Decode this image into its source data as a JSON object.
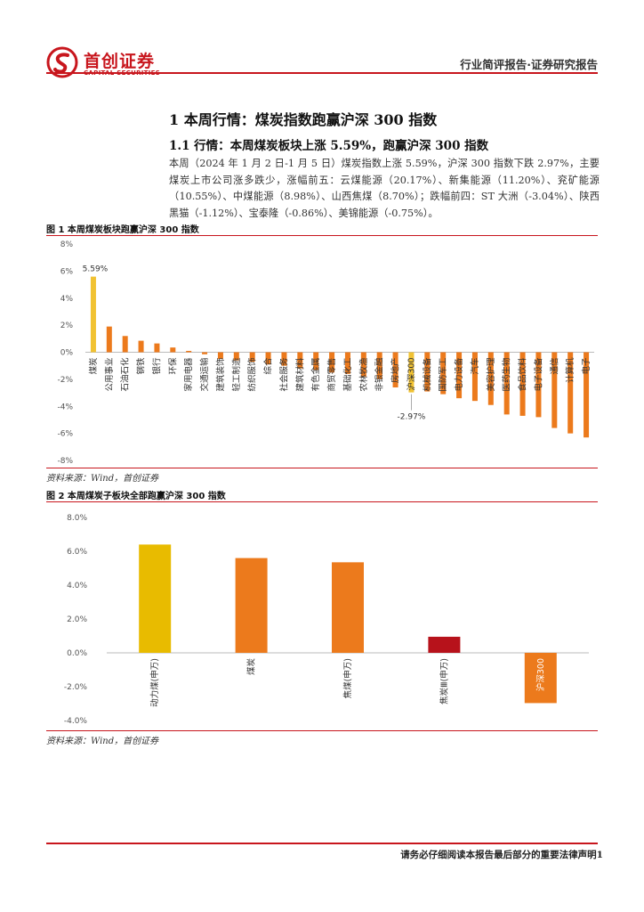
{
  "header": {
    "logo_cn": "首创证券",
    "logo_en": "CAPITAL SECURITIES",
    "report_type": "行业简评报告·证券研究报告"
  },
  "section": {
    "h1": "1 本周行情：煤炭指数跑赢沪深 300 指数",
    "h2": "1.1 行情：本周煤炭板块上涨 5.59%，跑赢沪深 300 指数",
    "paragraph": "本周（2024 年 1 月 2 日-1 月 5 日）煤炭指数上涨 5.59%，沪深 300 指数下跌 2.97%，主要煤炭上市公司涨多跌少，涨幅前五：云煤能源（20.17%）、新集能源（11.20%）、兖矿能源（10.55%）、中煤能源（8.98%）、山西焦煤（8.70%）；跌幅前四：ST 大洲（-3.04%）、陕西黑猫（-1.12%）、宝泰隆（-0.86%）、美锦能源（-0.75%）。"
  },
  "figure1": {
    "title": "图 1 本周煤炭板块跑赢沪深 300 指数",
    "source": "资料来源：Wind，首创证券"
  },
  "figure2": {
    "title": "图 2 本周煤炭子板块全部跑赢沪深 300 指数",
    "source": "资料来源：Wind，首创证券"
  },
  "footer": {
    "text": "请务必仔细阅读本报告最后部分的重要法律声明1"
  },
  "colors": {
    "brand_red": "#c8161d",
    "highlight_yellow": "#f1c232",
    "bar_orange": "#ec7a1c",
    "dark_red": "#b7121b",
    "gold": "#e8bb00"
  },
  "chart_data": [
    {
      "type": "bar",
      "categories": [
        "煤炭",
        "公用事业",
        "石油石化",
        "钢铁",
        "银行",
        "环保",
        "家用电器",
        "交通运输",
        "建筑装饰",
        "轻工制造",
        "纺织服饰",
        "综合",
        "社会服务",
        "建筑材料",
        "有色金属",
        "商贸零售",
        "基础化工",
        "农林牧渔",
        "非银金融",
        "房地产",
        "沪深300",
        "机械设备",
        "国防军工",
        "电力设备",
        "汽车",
        "美容护理",
        "医药生物",
        "食品饮料",
        "电子设备",
        "通信",
        "计算机",
        "电子"
      ],
      "values": [
        5.59,
        1.9,
        1.2,
        0.85,
        0.65,
        0.35,
        0.1,
        -0.15,
        -0.5,
        -0.6,
        -0.7,
        -0.9,
        -1.0,
        -1.2,
        -1.3,
        -1.5,
        -1.6,
        -1.8,
        -2.0,
        -2.6,
        -2.97,
        -2.9,
        -3.1,
        -3.4,
        -3.6,
        -3.9,
        -4.6,
        -4.7,
        -4.8,
        -5.6,
        -6.0,
        -6.3
      ],
      "highlight": {
        "煤炭": "#f1c232",
        "沪深300": "#f1c232"
      },
      "data_labels": [
        {
          "category": "煤炭",
          "text": "5.59%"
        },
        {
          "category": "沪深300",
          "text": "-2.97%"
        }
      ],
      "ylim": [
        -8,
        8
      ],
      "yticks": [
        "8%",
        "6%",
        "4%",
        "2%",
        "0%",
        "-2%",
        "-4%",
        "-6%",
        "-8%"
      ],
      "grid": false
    },
    {
      "type": "bar",
      "categories": [
        "动力煤(申万)",
        "煤炭",
        "焦煤(申万)",
        "焦炭Ⅲ(申万)",
        "沪深300"
      ],
      "values": [
        6.4,
        5.6,
        5.35,
        0.95,
        -2.97
      ],
      "colors": [
        "#e8bb00",
        "#ec7a1c",
        "#ec7a1c",
        "#b7121b",
        "#ec7a1c"
      ],
      "ylim": [
        -4,
        8
      ],
      "yticks": [
        "8.0%",
        "6.0%",
        "4.0%",
        "2.0%",
        "0.0%",
        "-2.0%",
        "-4.0%"
      ],
      "grid": false
    }
  ]
}
